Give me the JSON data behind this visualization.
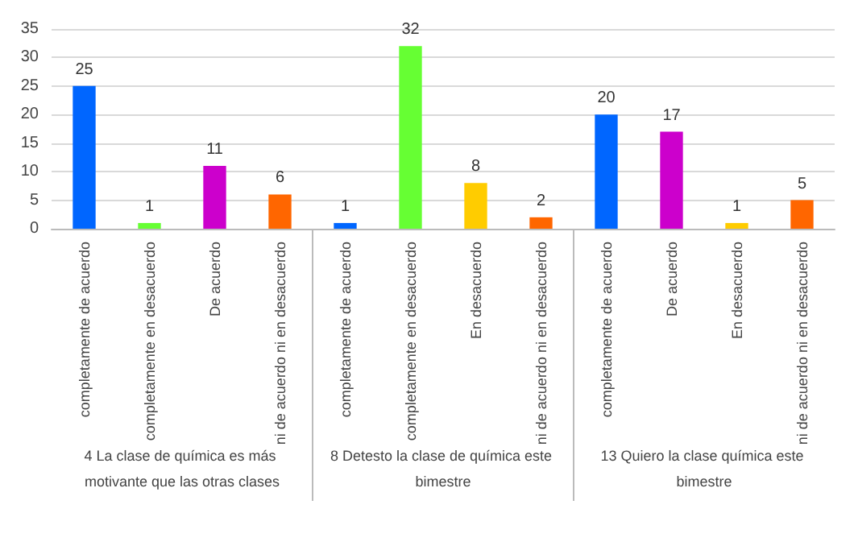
{
  "chart_data": {
    "type": "bar",
    "categories": [
      "completamente de acuerdo",
      "completamente en desacuerdo",
      "De acuerdo",
      "ni de acuerdo ni en desacuerdo",
      "completamente de acuerdo",
      "completamente en desacuerdo",
      "En desacuerdo",
      "ni de acuerdo ni en desacuerdo",
      "completamente de acuerdo",
      "De acuerdo",
      "En desacuerdo",
      "ni de acuerdo ni en desacuerdo"
    ],
    "values": [
      25,
      1,
      11,
      6,
      1,
      32,
      8,
      2,
      20,
      17,
      1,
      5
    ],
    "colors": [
      "#0066ff",
      "#66ff33",
      "#cc00cc",
      "#ff6600",
      "#0066ff",
      "#66ff33",
      "#ffcc00",
      "#ff6600",
      "#0066ff",
      "#cc00cc",
      "#ffcc00",
      "#ff6600"
    ],
    "ylim": [
      0,
      35
    ],
    "yticks": [
      0,
      5,
      10,
      15,
      20,
      25,
      30,
      35
    ],
    "grid": "y",
    "data_labels": true,
    "annotations": [
      "4 La clase de química es más motivante que las otras clases",
      "8 Detesto la clase de química este bimestre",
      "13 Quiero la clase química este bimestre"
    ]
  }
}
